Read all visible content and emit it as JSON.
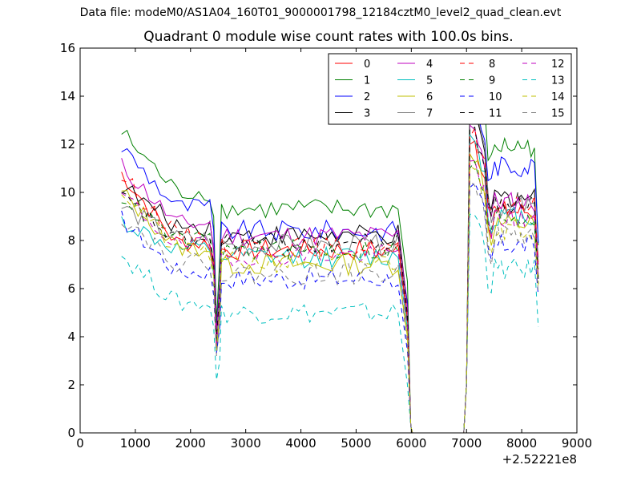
{
  "figure": {
    "suptitle": "Data file: modeM0/AS1A04_160T01_9000001798_12184cztM0_level2_quad_clean.evt"
  },
  "chart_data": {
    "type": "line",
    "title": "Quadrant 0 module wise count rates with 100.0s bins.",
    "xlabel": "",
    "ylabel": "",
    "x_offset_label": "+2.52221e8",
    "xlim": [
      0,
      9000
    ],
    "ylim": [
      0,
      16
    ],
    "xticks": [
      0,
      1000,
      2000,
      3000,
      4000,
      5000,
      6000,
      7000,
      8000,
      9000
    ],
    "yticks": [
      0,
      2,
      4,
      6,
      8,
      10,
      12,
      14,
      16
    ],
    "legend_position": "top-right",
    "legend_columns": 4,
    "segments": [
      {
        "start": 750,
        "end": 2350,
        "dip": 2460,
        "mid_start": 2560
      },
      {
        "mid_end": 5850
      },
      {
        "zero_start": 6000,
        "zero_end": 6950
      },
      {
        "late_start": 7050,
        "late_end": 8300
      }
    ],
    "series": [
      {
        "name": "0",
        "color": "#ff0000",
        "dash": "solid",
        "start": 10.8,
        "early": 7.9,
        "dip": 3.6,
        "mid": 7.6,
        "late_start": 12.0,
        "late_mid": 9.2,
        "end": 7.0
      },
      {
        "name": "1",
        "color": "#008000",
        "dash": "solid",
        "start": 12.5,
        "early": 10.0,
        "dip": 4.6,
        "mid": 9.3,
        "late_start": 14.6,
        "late_mid": 11.9,
        "end": 7.8
      },
      {
        "name": "2",
        "color": "#0000ff",
        "dash": "solid",
        "start": 11.9,
        "early": 9.4,
        "dip": 4.2,
        "mid": 8.4,
        "late_start": 13.5,
        "late_mid": 11.1,
        "end": 7.9
      },
      {
        "name": "3",
        "color": "#000000",
        "dash": "solid",
        "start": 10.3,
        "early": 8.6,
        "dip": 4.0,
        "mid": 8.2,
        "late_start": 13.0,
        "late_mid": 9.8,
        "end": 6.4
      },
      {
        "name": "4",
        "color": "#bf00bf",
        "dash": "solid",
        "start": 11.1,
        "early": 8.7,
        "dip": 4.1,
        "mid": 8.2,
        "late_start": 12.8,
        "late_mid": 9.6,
        "end": 7.3
      },
      {
        "name": "5",
        "color": "#00bfbf",
        "dash": "solid",
        "start": 8.8,
        "early": 7.6,
        "dip": 3.5,
        "mid": 7.3,
        "late_start": 12.4,
        "late_mid": 9.0,
        "end": 7.0
      },
      {
        "name": "6",
        "color": "#bfbf00",
        "dash": "solid",
        "start": 10.0,
        "early": 7.7,
        "dip": 3.4,
        "mid": 7.0,
        "late_start": 11.6,
        "late_mid": 8.7,
        "end": 6.6
      },
      {
        "name": "7",
        "color": "#808080",
        "dash": "solid",
        "start": 9.4,
        "early": 8.1,
        "dip": 3.7,
        "mid": 7.8,
        "late_start": 14.3,
        "late_mid": 9.4,
        "end": 7.1
      },
      {
        "name": "8",
        "color": "#ff0000",
        "dash": "dashed",
        "start": 10.7,
        "early": 8.2,
        "dip": 3.8,
        "mid": 7.7,
        "late_start": 12.3,
        "late_mid": 9.5,
        "end": 6.8
      },
      {
        "name": "9",
        "color": "#008000",
        "dash": "dashed",
        "start": 9.9,
        "early": 8.0,
        "dip": 3.7,
        "mid": 7.6,
        "late_start": 11.0,
        "late_mid": 9.0,
        "end": 6.5
      },
      {
        "name": "10",
        "color": "#0000ff",
        "dash": "dashed",
        "start": 8.9,
        "early": 6.7,
        "dip": 3.3,
        "mid": 6.4,
        "late_start": 10.2,
        "late_mid": 7.8,
        "end": 5.7
      },
      {
        "name": "11",
        "color": "#000000",
        "dash": "dashed",
        "start": 9.8,
        "early": 8.0,
        "dip": 3.9,
        "mid": 7.9,
        "late_start": 12.6,
        "late_mid": 9.6,
        "end": 6.2
      },
      {
        "name": "12",
        "color": "#bf00bf",
        "dash": "dashed",
        "start": 9.9,
        "early": 7.8,
        "dip": 3.6,
        "mid": 7.4,
        "late_start": 11.3,
        "late_mid": 8.9,
        "end": 6.4
      },
      {
        "name": "13",
        "color": "#00bfbf",
        "dash": "dashed",
        "start": 7.4,
        "early": 5.4,
        "dip": 2.2,
        "mid": 5.0,
        "late_start": 9.1,
        "late_mid": 6.8,
        "end": 4.4
      },
      {
        "name": "14",
        "color": "#bfbf00",
        "dash": "dashed",
        "start": 10.1,
        "early": 7.5,
        "dip": 3.4,
        "mid": 7.1,
        "late_start": 11.1,
        "late_mid": 8.5,
        "end": 6.1
      },
      {
        "name": "15",
        "color": "#808080",
        "dash": "dashed",
        "start": 9.0,
        "early": 7.1,
        "dip": 3.2,
        "mid": 6.6,
        "late_start": 10.5,
        "late_mid": 8.2,
        "end": 5.8
      }
    ]
  }
}
